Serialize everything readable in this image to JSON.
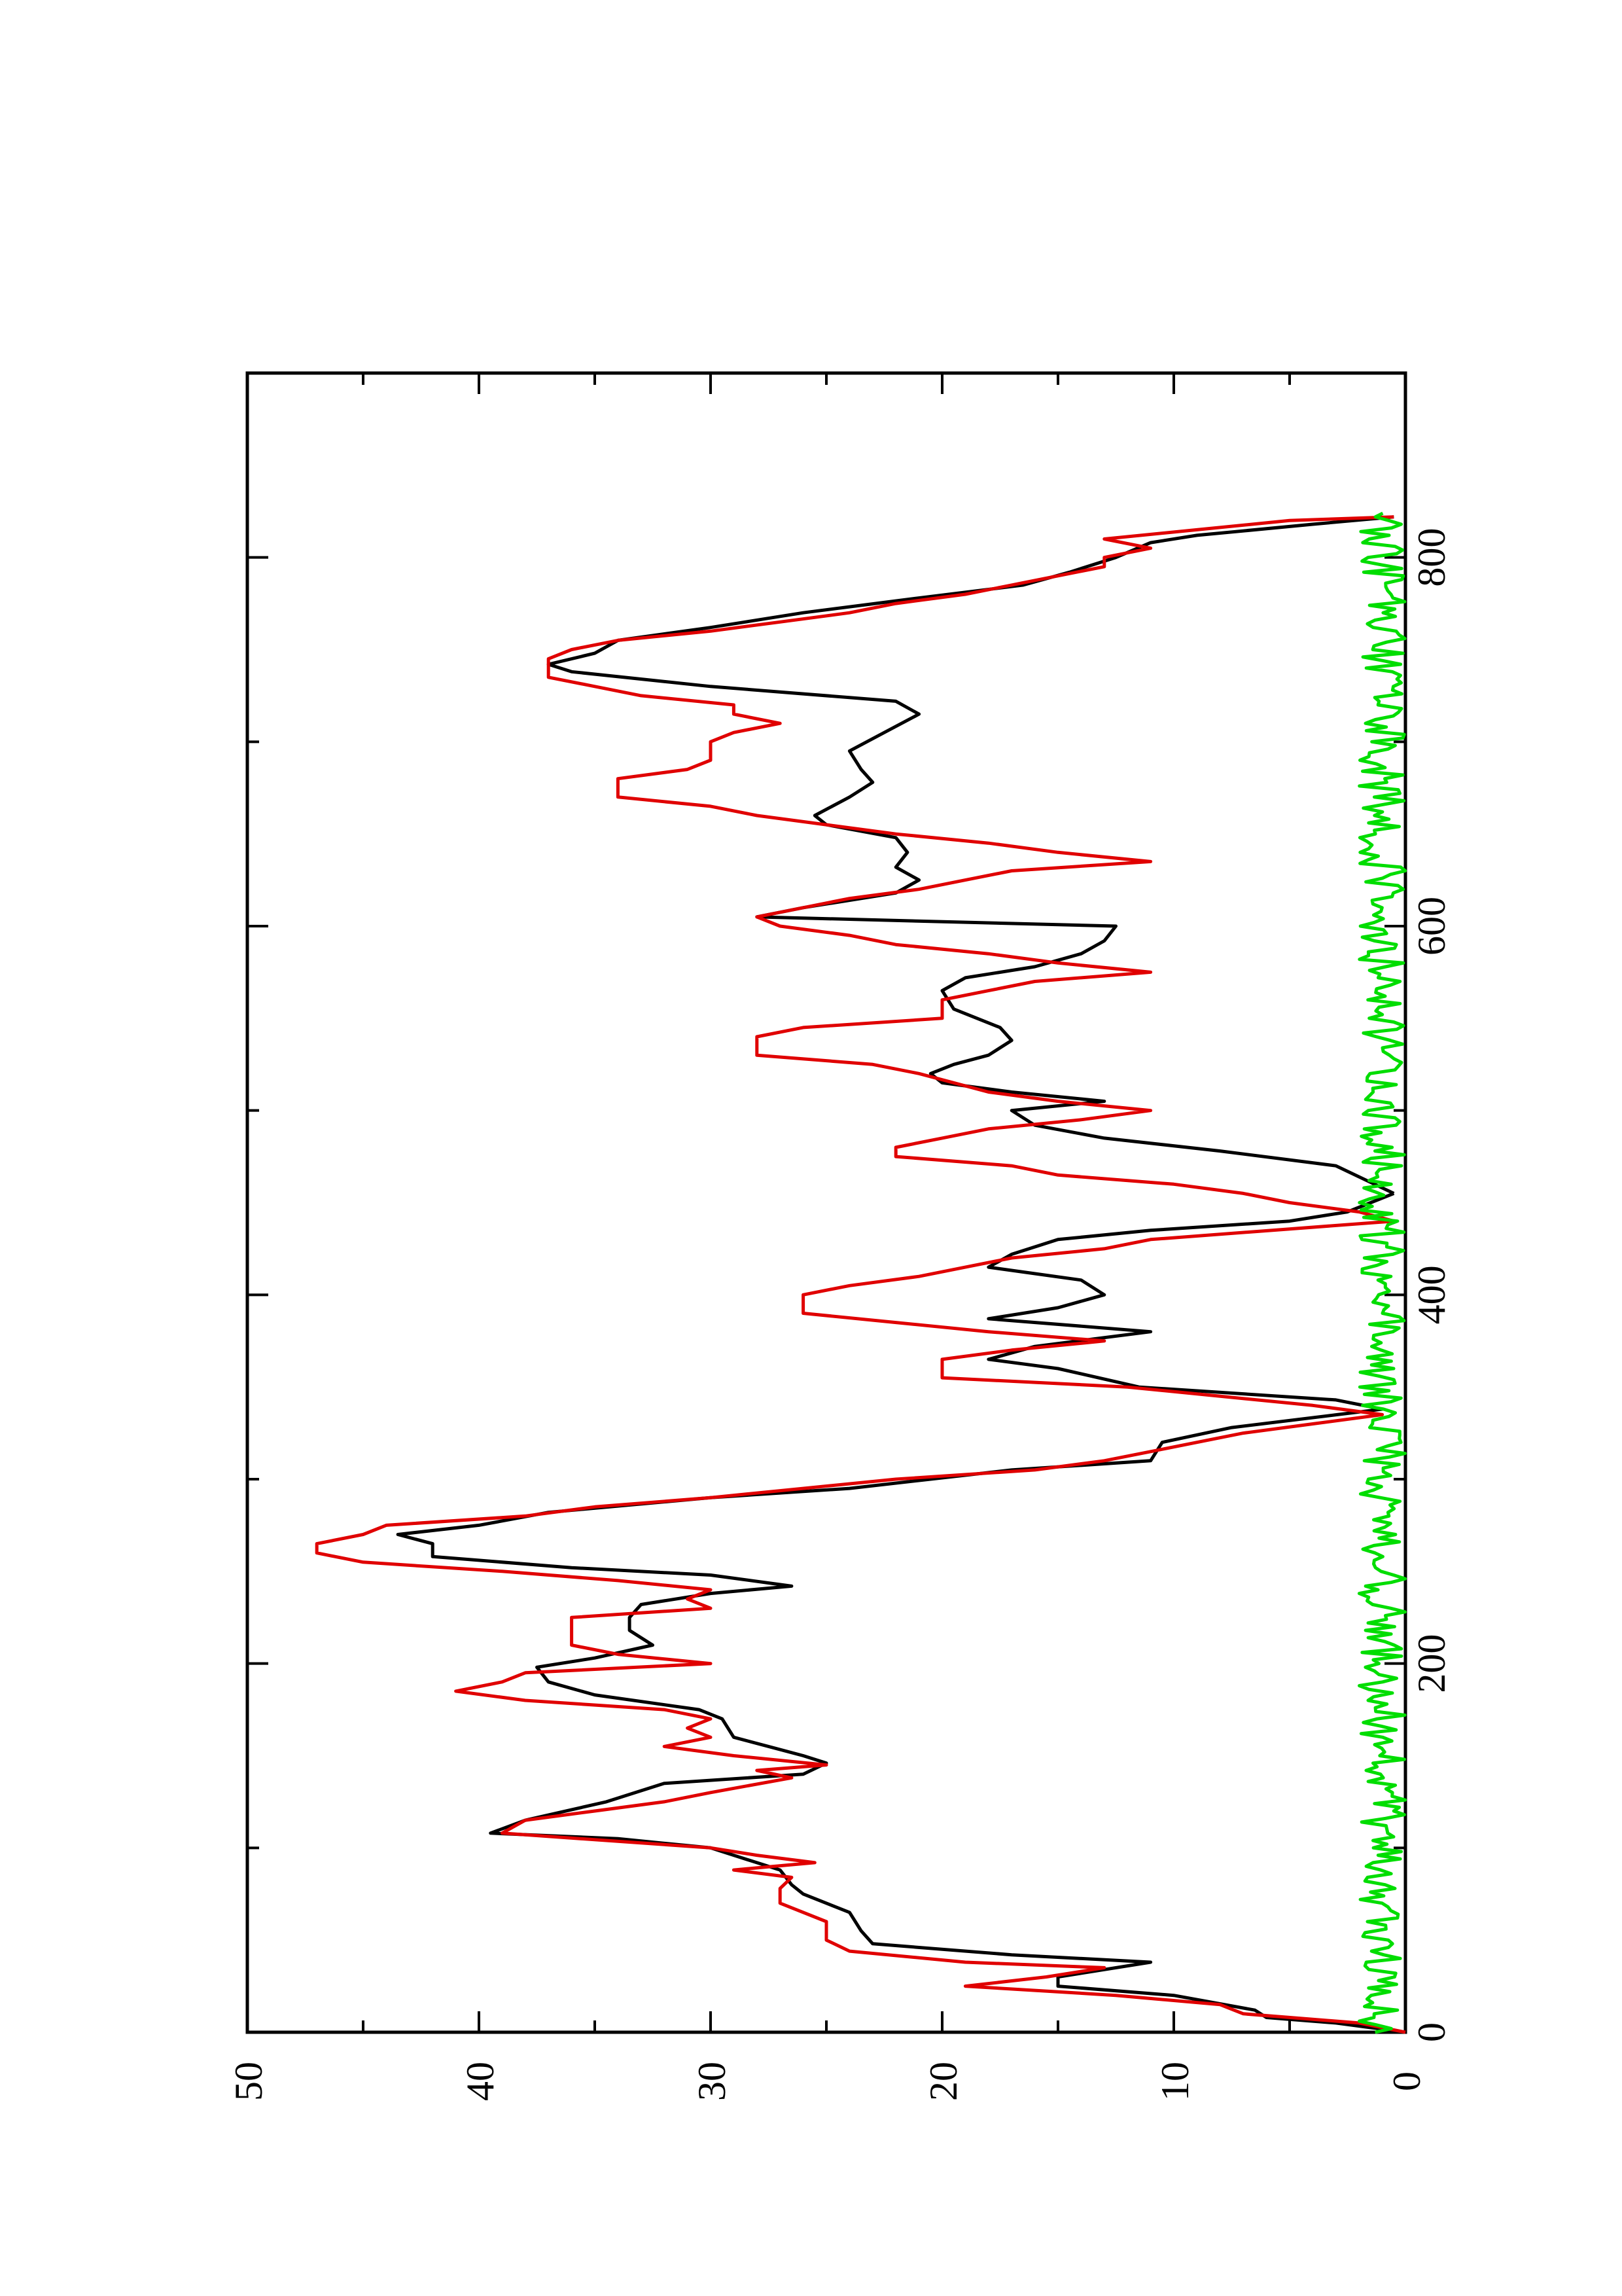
{
  "chart_data": {
    "type": "line",
    "orientation": "rotated 90° counter-clockwise",
    "title": "",
    "xlabel": "",
    "ylabel": "",
    "xlim": [
      0,
      900
    ],
    "ylim": [
      0,
      50
    ],
    "x_ticks": [
      0,
      200,
      400,
      600,
      800
    ],
    "y_ticks": [
      0,
      10,
      20,
      30,
      40,
      50
    ],
    "grid": false,
    "colors": {
      "black": "#000000",
      "red": "#e00000",
      "green": "#00dd00"
    },
    "series": [
      {
        "color": "#000000",
        "points": [
          [
            0,
            0
          ],
          [
            5,
            3
          ],
          [
            8,
            6
          ],
          [
            12,
            6.5
          ],
          [
            20,
            10
          ],
          [
            25,
            15
          ],
          [
            30,
            15
          ],
          [
            38,
            11
          ],
          [
            42,
            17
          ],
          [
            48,
            23
          ],
          [
            55,
            23.5
          ],
          [
            65,
            24
          ],
          [
            75,
            26
          ],
          [
            80,
            26.5
          ],
          [
            88,
            27
          ],
          [
            92,
            28
          ],
          [
            100,
            30
          ],
          [
            105,
            34
          ],
          [
            108,
            39.5
          ],
          [
            115,
            38
          ],
          [
            125,
            34.5
          ],
          [
            135,
            32
          ],
          [
            140,
            26
          ],
          [
            146,
            25
          ],
          [
            150,
            26
          ],
          [
            160,
            29
          ],
          [
            170,
            29.5
          ],
          [
            175,
            30.5
          ],
          [
            183,
            35
          ],
          [
            190,
            37
          ],
          [
            198,
            37.5
          ],
          [
            203,
            35
          ],
          [
            210,
            32.5
          ],
          [
            218,
            33.5
          ],
          [
            225,
            33.5
          ],
          [
            232,
            33
          ],
          [
            238,
            30
          ],
          [
            242,
            26.5
          ],
          [
            248,
            30
          ],
          [
            252,
            36
          ],
          [
            258,
            42
          ],
          [
            265,
            42
          ],
          [
            270,
            43.5
          ],
          [
            275,
            40
          ],
          [
            282,
            37
          ],
          [
            290,
            30
          ],
          [
            295,
            24
          ],
          [
            305,
            17
          ],
          [
            310,
            11
          ],
          [
            320,
            10.5
          ],
          [
            328,
            7.5
          ],
          [
            338,
            1
          ],
          [
            343,
            3
          ],
          [
            350,
            11.5
          ],
          [
            360,
            15
          ],
          [
            365,
            18
          ],
          [
            372,
            16
          ],
          [
            380,
            11
          ],
          [
            387,
            18
          ],
          [
            393,
            15
          ],
          [
            400,
            13
          ],
          [
            408,
            14
          ],
          [
            415,
            18
          ],
          [
            422,
            17
          ],
          [
            430,
            15
          ],
          [
            435,
            11
          ],
          [
            440,
            5
          ],
          [
            445,
            2.5
          ],
          [
            450,
            1.5
          ],
          [
            455,
            0.5
          ]
        ]
      },
      {
        "color": "#000000",
        "points": [
          [
            455,
            0.5
          ],
          [
            470,
            3
          ],
          [
            478,
            8
          ],
          [
            485,
            13
          ],
          [
            492,
            16
          ],
          [
            500,
            17
          ],
          [
            505,
            13
          ],
          [
            510,
            17
          ],
          [
            515,
            20
          ],
          [
            520,
            20.5
          ],
          [
            525,
            19.5
          ],
          [
            530,
            18
          ],
          [
            538,
            17
          ],
          [
            545,
            17.5
          ],
          [
            555,
            19.5
          ],
          [
            565,
            20
          ],
          [
            572,
            19
          ],
          [
            578,
            16
          ],
          [
            585,
            14
          ],
          [
            592,
            13
          ],
          [
            600,
            12.5
          ],
          [
            605,
            28
          ],
          [
            610,
            26
          ],
          [
            618,
            22
          ],
          [
            625,
            21
          ],
          [
            632,
            22
          ],
          [
            640,
            21.5
          ],
          [
            648,
            22
          ],
          [
            655,
            25
          ],
          [
            660,
            25.5
          ],
          [
            670,
            24
          ],
          [
            678,
            23
          ],
          [
            685,
            23.5
          ],
          [
            695,
            24
          ],
          [
            705,
            22.5
          ],
          [
            715,
            21
          ],
          [
            722,
            22
          ],
          [
            730,
            30
          ],
          [
            738,
            36
          ],
          [
            742,
            37
          ],
          [
            748,
            35
          ],
          [
            755,
            34
          ],
          [
            762,
            30
          ],
          [
            770,
            26
          ],
          [
            778,
            21
          ],
          [
            785,
            16.5
          ],
          [
            792,
            14.5
          ],
          [
            800,
            12.5
          ],
          [
            808,
            11
          ],
          [
            812,
            9
          ],
          [
            818,
            4
          ],
          [
            822,
            0.5
          ]
        ]
      },
      {
        "color": "#e00000",
        "points": [
          [
            0,
            0
          ],
          [
            5,
            2
          ],
          [
            10,
            7
          ],
          [
            15,
            8
          ],
          [
            20,
            12.5
          ],
          [
            25,
            19
          ],
          [
            30,
            15.5
          ],
          [
            35,
            13
          ],
          [
            38,
            19
          ],
          [
            44,
            24
          ],
          [
            50,
            25
          ],
          [
            60,
            25
          ],
          [
            70,
            27
          ],
          [
            78,
            27
          ],
          [
            84,
            26.5
          ],
          [
            88,
            29
          ],
          [
            92,
            25.5
          ],
          [
            96,
            28
          ],
          [
            100,
            30
          ],
          [
            108,
            39
          ],
          [
            115,
            38
          ],
          [
            120,
            35
          ],
          [
            125,
            32
          ],
          [
            130,
            30
          ],
          [
            138,
            26.5
          ],
          [
            142,
            28
          ],
          [
            145,
            25
          ],
          [
            150,
            29
          ],
          [
            155,
            32
          ],
          [
            160,
            30
          ],
          [
            165,
            31
          ],
          [
            170,
            30
          ],
          [
            175,
            32
          ],
          [
            180,
            38
          ],
          [
            185,
            41
          ],
          [
            190,
            39
          ],
          [
            195,
            38
          ],
          [
            200,
            30
          ],
          [
            205,
            34
          ],
          [
            210,
            36
          ],
          [
            225,
            36
          ],
          [
            230,
            30
          ],
          [
            235,
            31
          ],
          [
            240,
            30
          ],
          [
            245,
            34
          ],
          [
            250,
            39
          ],
          [
            255,
            45
          ],
          [
            260,
            47
          ],
          [
            265,
            47
          ],
          [
            270,
            45
          ],
          [
            275,
            44
          ],
          [
            280,
            38
          ],
          [
            285,
            35
          ],
          [
            290,
            30
          ],
          [
            295,
            26
          ],
          [
            300,
            22
          ],
          [
            305,
            16
          ],
          [
            310,
            13
          ],
          [
            315,
            11
          ],
          [
            320,
            9
          ],
          [
            325,
            7
          ],
          [
            330,
            4
          ],
          [
            335,
            1
          ],
          [
            340,
            4
          ],
          [
            345,
            8
          ],
          [
            350,
            12
          ],
          [
            355,
            20
          ],
          [
            365,
            20
          ],
          [
            370,
            17
          ],
          [
            375,
            13
          ],
          [
            380,
            18
          ],
          [
            385,
            22
          ],
          [
            390,
            26
          ],
          [
            400,
            26
          ],
          [
            405,
            24
          ],
          [
            410,
            21
          ],
          [
            415,
            19
          ],
          [
            420,
            17
          ],
          [
            425,
            13
          ],
          [
            430,
            11
          ],
          [
            440,
            0.5
          ],
          [
            445,
            2
          ],
          [
            450,
            5
          ],
          [
            455,
            7
          ],
          [
            460,
            10
          ],
          [
            465,
            15
          ],
          [
            470,
            17
          ],
          [
            475,
            22
          ],
          [
            480,
            22
          ],
          [
            485,
            20
          ],
          [
            490,
            18
          ],
          [
            495,
            14
          ],
          [
            500,
            11
          ],
          [
            505,
            15
          ],
          [
            510,
            18
          ],
          [
            520,
            21
          ],
          [
            525,
            23
          ],
          [
            530,
            28
          ],
          [
            540,
            28
          ],
          [
            545,
            26
          ],
          [
            550,
            20
          ],
          [
            560,
            20
          ],
          [
            565,
            18
          ],
          [
            570,
            16
          ],
          [
            575,
            11
          ],
          [
            580,
            15
          ],
          [
            585,
            18
          ],
          [
            590,
            22
          ],
          [
            595,
            24
          ],
          [
            600,
            27
          ],
          [
            605,
            28
          ],
          [
            610,
            26
          ],
          [
            615,
            24
          ],
          [
            620,
            21
          ],
          [
            625,
            19
          ],
          [
            630,
            17
          ],
          [
            635,
            11
          ],
          [
            640,
            15
          ],
          [
            645,
            18
          ],
          [
            650,
            22
          ],
          [
            655,
            25
          ],
          [
            660,
            28
          ],
          [
            665,
            30
          ],
          [
            670,
            34
          ],
          [
            680,
            34
          ],
          [
            685,
            31
          ],
          [
            690,
            30
          ],
          [
            700,
            30
          ],
          [
            705,
            29
          ],
          [
            710,
            27
          ],
          [
            715,
            29
          ],
          [
            720,
            29
          ],
          [
            725,
            33
          ],
          [
            730,
            35
          ],
          [
            735,
            37
          ],
          [
            745,
            37
          ],
          [
            750,
            36
          ],
          [
            755,
            34
          ],
          [
            760,
            30
          ],
          [
            765,
            27
          ],
          [
            770,
            24
          ],
          [
            775,
            22
          ],
          [
            780,
            19
          ],
          [
            785,
            17
          ],
          [
            790,
            15
          ],
          [
            795,
            13
          ],
          [
            800,
            13
          ],
          [
            805,
            11
          ],
          [
            810,
            13
          ],
          [
            815,
            9
          ],
          [
            820,
            5
          ],
          [
            822,
            0.5
          ]
        ]
      },
      {
        "color": "#00dd00",
        "pattern": "noise",
        "x_range": [
          0,
          825
        ],
        "step": 2,
        "y_range": [
          0,
          2
        ]
      }
    ]
  }
}
